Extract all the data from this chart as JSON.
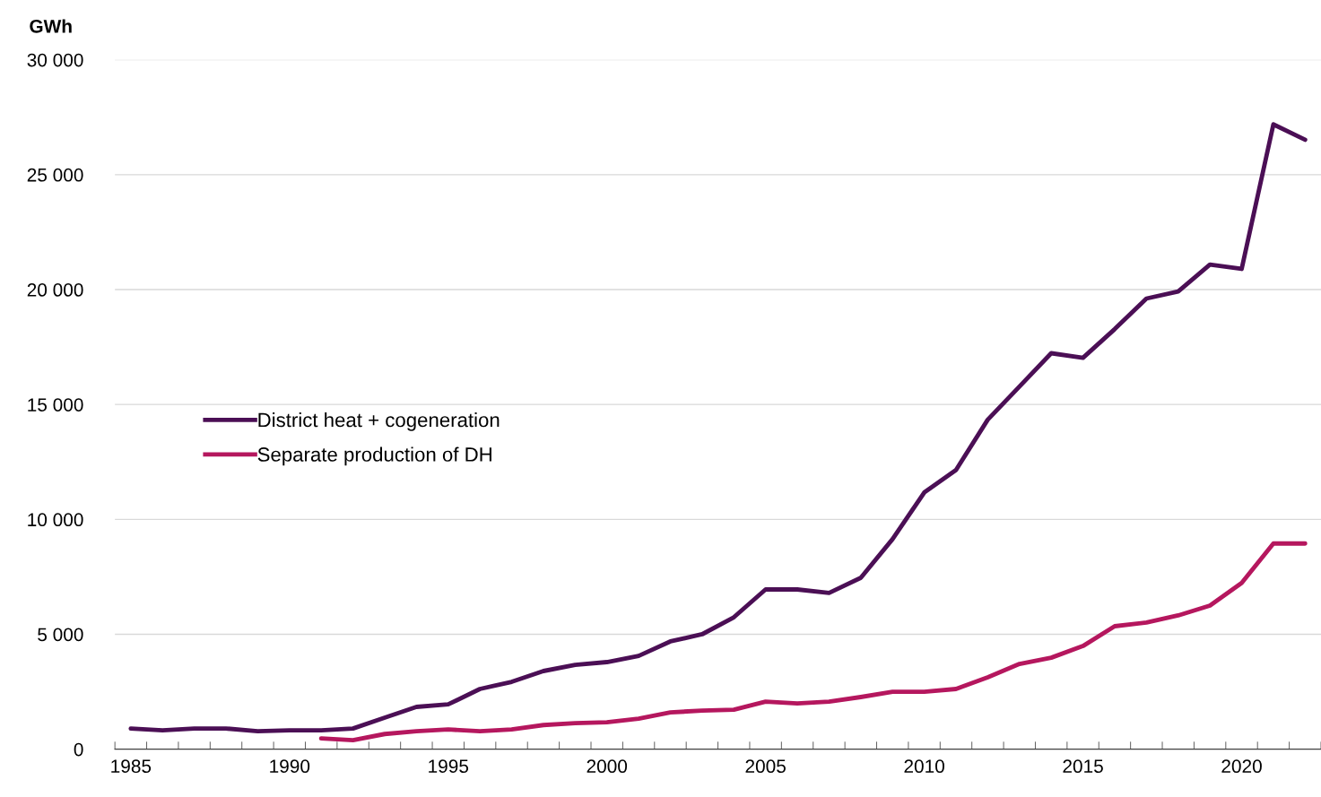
{
  "chart_data": {
    "type": "line",
    "ylabel": "GWh",
    "categories": [
      "1985",
      null,
      null,
      null,
      null,
      "1990",
      null,
      null,
      null,
      null,
      "1995",
      null,
      null,
      null,
      null,
      "2000",
      null,
      null,
      null,
      null,
      "2005",
      null,
      null,
      null,
      null,
      "2010",
      null,
      null,
      null,
      null,
      "2015",
      null,
      null,
      null,
      null,
      "2020",
      null,
      null
    ],
    "series": [
      {
        "name": "District heat + cogeneration",
        "color": "#4b0f55",
        "values": [
          900,
          820,
          900,
          900,
          780,
          820,
          820,
          900,
          1370,
          1840,
          1950,
          2620,
          2930,
          3400,
          3670,
          3790,
          4060,
          4690,
          5000,
          5740,
          6950,
          6950,
          6800,
          7460,
          9140,
          11170,
          12150,
          14340,
          15780,
          17230,
          17030,
          18280,
          19610,
          19920,
          21090,
          20900,
          27190,
          26520
        ]
      },
      {
        "name": "Separate production of DH",
        "color": "#b5175e",
        "values": [
          null,
          null,
          null,
          null,
          null,
          null,
          470,
          390,
          660,
          780,
          860,
          780,
          860,
          1050,
          1130,
          1170,
          1330,
          1600,
          1680,
          1720,
          2070,
          1990,
          2070,
          2270,
          2500,
          2500,
          2620,
          3130,
          3710,
          3980,
          4490,
          5350,
          5510,
          5820,
          6250,
          7230,
          8950,
          8950
        ]
      }
    ],
    "ylim": [
      0,
      30000
    ],
    "yticks": [
      0,
      {
        "value": 5000,
        "label": "5 000"
      },
      {
        "value": 10000,
        "label": "10 000"
      },
      {
        "value": 15000,
        "label": "15 000"
      },
      {
        "value": 20000,
        "label": "20 000"
      },
      {
        "value": 25000,
        "label": "25 000"
      },
      {
        "value": 30000,
        "label": "30 000"
      }
    ],
    "grid": "y",
    "legend": "center left",
    "marker": "none",
    "line_style": "solid"
  }
}
